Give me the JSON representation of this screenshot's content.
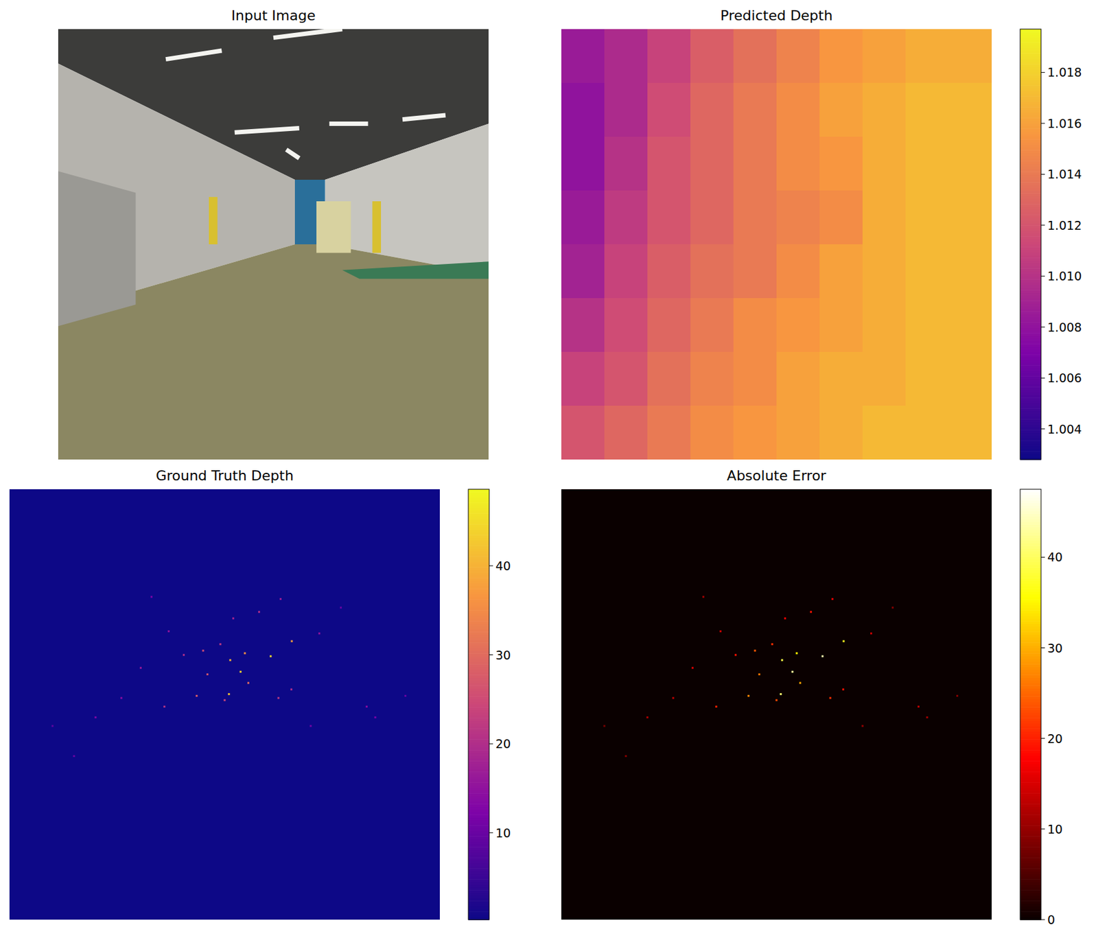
{
  "chart_data": [
    {
      "type": "image",
      "title": "Input Image"
    },
    {
      "type": "heatmap",
      "title": "Predicted Depth",
      "color": "plasma",
      "cells": [
        [
          1.0085,
          1.0095,
          1.011,
          1.0125,
          1.0135,
          1.0145,
          1.0155,
          1.016,
          1.0165,
          1.0165
        ],
        [
          1.008,
          1.0095,
          1.0115,
          1.013,
          1.014,
          1.015,
          1.016,
          1.0165,
          1.017,
          1.017
        ],
        [
          1.008,
          1.01,
          1.012,
          1.013,
          1.014,
          1.015,
          1.0155,
          1.0165,
          1.017,
          1.017
        ],
        [
          1.0085,
          1.0105,
          1.012,
          1.013,
          1.014,
          1.0145,
          1.015,
          1.0165,
          1.017,
          1.017
        ],
        [
          1.009,
          1.011,
          1.0125,
          1.0135,
          1.014,
          1.015,
          1.016,
          1.0165,
          1.017,
          1.017
        ],
        [
          1.01,
          1.0115,
          1.013,
          1.014,
          1.015,
          1.0155,
          1.016,
          1.0165,
          1.017,
          1.017
        ],
        [
          1.011,
          1.012,
          1.0135,
          1.0145,
          1.015,
          1.016,
          1.0165,
          1.0165,
          1.017,
          1.017
        ],
        [
          1.012,
          1.013,
          1.014,
          1.015,
          1.0155,
          1.016,
          1.0165,
          1.017,
          1.017,
          1.017
        ]
      ],
      "clim": [
        1.0028,
        1.0197
      ],
      "cticks": [
        1.004,
        1.006,
        1.008,
        {
          "value": 1.01,
          "label": "1.010"
        },
        1.012,
        1.014,
        1.016,
        1.018
      ]
    },
    {
      "type": "sparse_heatmap",
      "title": "Ground Truth Depth",
      "color": "plasma",
      "tick_labels": false,
      "xlim": [
        0,
        100
      ],
      "ylim": [
        100,
        0
      ],
      "background_value": 0.24,
      "points": {
        "x": [
          54.7,
          51.3,
          53.7,
          51.0,
          60.7,
          65.6,
          49.0,
          45.0,
          40.5,
          52.0,
          58.0,
          63.0,
          37.0,
          30.5,
          26.0,
          43.5,
          50.0,
          62.5,
          65.5,
          72.0,
          83.0,
          85.0,
          20.0,
          15.0,
          36.0,
          55.5,
          46.0,
          70.0,
          33.0,
          77.0,
          10.0,
          92.0
        ],
        "y": [
          38.1,
          39.7,
          42.4,
          47.6,
          38.8,
          35.3,
          36.0,
          37.5,
          38.5,
          30.0,
          28.5,
          25.5,
          33.0,
          41.5,
          48.5,
          48.0,
          49.0,
          48.5,
          46.5,
          33.5,
          50.5,
          53.0,
          53.0,
          62.0,
          50.5,
          45.0,
          43.0,
          55.0,
          25.0,
          27.5,
          55.0,
          48.0
        ],
        "values": [
          36,
          40,
          44,
          42,
          45,
          38,
          22,
          25,
          20,
          18,
          20,
          17,
          15,
          16,
          14,
          28,
          24,
          22,
          20,
          15,
          14,
          12,
          13,
          10,
          21,
          30,
          27,
          11,
          12,
          10,
          9,
          10
        ]
      },
      "clim": [
        0.24,
        48.6
      ],
      "cticks": [
        10,
        20,
        30,
        40
      ]
    },
    {
      "type": "sparse_heatmap",
      "title": "Absolute Error",
      "color": "hot",
      "tick_labels": false,
      "xlim": [
        0,
        100
      ],
      "ylim": [
        100,
        0
      ],
      "background_value": 0,
      "points": {
        "x": [
          54.7,
          51.3,
          53.7,
          51.0,
          60.7,
          65.6,
          49.0,
          45.0,
          40.5,
          52.0,
          58.0,
          63.0,
          37.0,
          30.5,
          26.0,
          43.5,
          50.0,
          62.5,
          65.5,
          72.0,
          83.0,
          85.0,
          20.0,
          15.0,
          36.0,
          55.5,
          46.0,
          70.0,
          33.0,
          77.0,
          10.0,
          92.0
        ],
        "y": [
          38.1,
          39.7,
          42.4,
          47.6,
          38.8,
          35.3,
          36.0,
          37.5,
          38.5,
          30.0,
          28.5,
          25.5,
          33.0,
          41.5,
          48.5,
          48.0,
          49.0,
          48.5,
          46.5,
          33.5,
          50.5,
          53.0,
          53.0,
          62.0,
          50.5,
          45.0,
          43.0,
          55.0,
          25.0,
          27.5,
          55.0,
          48.0
        ],
        "values": [
          35,
          39,
          43,
          41,
          44,
          37,
          21,
          24,
          19,
          17,
          19,
          16,
          14,
          15,
          13,
          27,
          23,
          21,
          19,
          14,
          13,
          11,
          12,
          9,
          20,
          29,
          26,
          10,
          11,
          9,
          8,
          9
        ]
      },
      "clim": [
        0,
        47.5
      ],
      "cticks": [
        0,
        10,
        20,
        30,
        40
      ]
    }
  ]
}
